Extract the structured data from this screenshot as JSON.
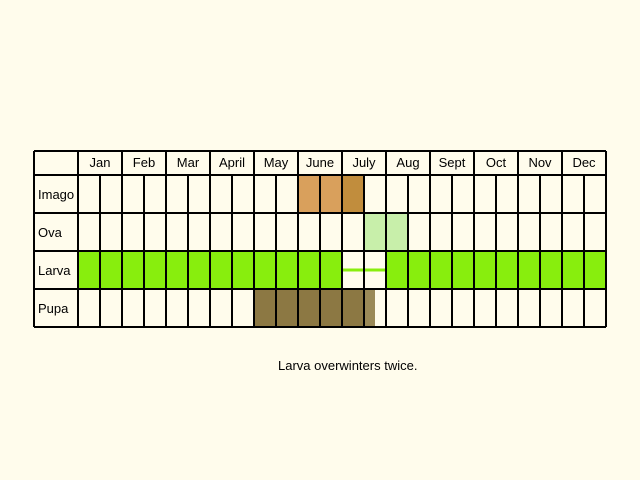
{
  "months": [
    "Jan",
    "Feb",
    "Mar",
    "Apr",
    "May",
    "June",
    "July",
    "Aug",
    "Sept",
    "Oct",
    "Nov",
    "Dec"
  ],
  "month_labels": [
    "Jan",
    "Feb",
    "Mar",
    "April",
    "May",
    "June",
    "July",
    "Aug",
    "Sept",
    "Oct",
    "Nov",
    "Dec"
  ],
  "stages": [
    {
      "label": "Imago",
      "periods": [
        {
          "start": 10.0,
          "end": 12.0,
          "color": "#d9a05c"
        },
        {
          "start": 12.0,
          "end": 13.0,
          "color": "#c18d3d"
        }
      ]
    },
    {
      "label": "Ova",
      "periods": [
        {
          "start": 13.0,
          "end": 15.0,
          "color": "#c8efaa"
        }
      ]
    },
    {
      "label": "Larva",
      "periods": [
        {
          "start": 0.0,
          "end": 12.0,
          "color": "#88ee0d"
        },
        {
          "start": 14.0,
          "end": 24.0,
          "color": "#88ee0d"
        }
      ],
      "markers": [
        {
          "start": 12.0,
          "end": 14.0,
          "color": "#88ee0d"
        }
      ]
    },
    {
      "label": "Pupa",
      "periods": [
        {
          "start": 8.0,
          "end": 13.0,
          "color": "#8c7843"
        },
        {
          "start": 13.0,
          "end": 13.5,
          "color": "#9b8a58"
        }
      ]
    }
  ],
  "note": "Larva overwinters twice.",
  "colors": {
    "background": "#fffcec",
    "grid": "#000000"
  }
}
